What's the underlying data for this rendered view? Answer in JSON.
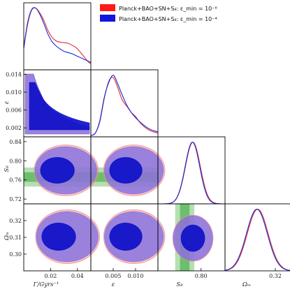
{
  "colors": {
    "red_line": "#e53030",
    "blue_line": "#1a2ad6",
    "red_fill_outer": "#f08a8a",
    "red_fill_inner": "#e03a3a",
    "blue_fill_outer": "#7b6ee6",
    "blue_fill_inner": "#0e10c8",
    "green_outer": "#b5dfb2",
    "green_inner": "#6cbf6c"
  },
  "legend": {
    "entries": [
      {
        "label": "Planck+BAO+SN+S₈: ε_min = 10⁻⁶",
        "color": "#ff1a1a"
      },
      {
        "label": "Planck+BAO+SN+S₈: ε_min = 10⁻⁴",
        "color": "#1414e0"
      }
    ]
  },
  "axis_labels": {
    "Gamma": "Γ/Gyrs⁻¹",
    "eps": "ε",
    "S8": "S₈",
    "Om": "Ωₘ"
  },
  "chart_data": {
    "type": "triangle-corner-plot",
    "parameters": [
      "Gamma",
      "eps",
      "S8",
      "Om"
    ],
    "ranges": {
      "Gamma": [
        0.0,
        0.05
      ],
      "eps": [
        0.0,
        0.015
      ],
      "S8": [
        0.71,
        0.85
      ],
      "Om": [
        0.29,
        0.33
      ]
    },
    "ticks": {
      "Gamma": [
        0.02,
        0.04
      ],
      "eps": [
        0.002,
        0.006,
        0.01,
        0.014
      ],
      "eps_x": [
        0.005,
        0.01
      ],
      "S8": [
        0.72,
        0.76,
        0.8,
        0.84
      ],
      "S8_x": [
        0.8
      ],
      "Om": [
        0.3,
        0.31,
        0.32
      ],
      "Om_x": [
        0.32
      ]
    },
    "tick_labels": {
      "Gamma_x": [
        "0.02",
        "0.04"
      ],
      "eps_y": [
        "0.002",
        "0.006",
        "0.010",
        "0.014"
      ],
      "eps_x": [
        "0.005",
        "0.010"
      ],
      "S8_y": [
        "0.72",
        "0.76",
        "0.80",
        "0.84"
      ],
      "S8_x": [
        "0.80"
      ],
      "Om_y": [
        "0.30",
        "0.31",
        "0.32"
      ],
      "Om_x": [
        "0.32"
      ]
    },
    "external_S8_prior": {
      "mean": 0.766,
      "sigma1": 0.01,
      "sigma2": 0.02
    },
    "series": [
      {
        "name": "Planck+BAO+SN+S₈: ε_min = 10⁻⁶",
        "marginals": {
          "Gamma": {
            "x": [
              0.0,
              0.003,
              0.006,
              0.009,
              0.012,
              0.015,
              0.018,
              0.021,
              0.024,
              0.027,
              0.03,
              0.033,
              0.036,
              0.039,
              0.042,
              0.045,
              0.048,
              0.05
            ],
            "p": [
              0.35,
              0.75,
              0.97,
              1.0,
              0.92,
              0.8,
              0.64,
              0.53,
              0.47,
              0.45,
              0.44,
              0.43,
              0.4,
              0.36,
              0.29,
              0.21,
              0.13,
              0.1
            ]
          },
          "eps": {
            "x": [
              0.0,
              0.001,
              0.002,
              0.003,
              0.004,
              0.005,
              0.006,
              0.007,
              0.008,
              0.009,
              0.01,
              0.011,
              0.012,
              0.013,
              0.014,
              0.015
            ],
            "p": [
              0.02,
              0.06,
              0.24,
              0.62,
              0.9,
              0.96,
              0.8,
              0.6,
              0.5,
              0.4,
              0.33,
              0.23,
              0.16,
              0.11,
              0.08,
              0.06
            ]
          },
          "S8": {
            "mean": 0.783,
            "sigma": 0.0155
          },
          "Om": {
            "mean": 0.3095,
            "sigma": 0.0062
          }
        }
      },
      {
        "name": "Planck+BAO+SN+S₈: ε_min = 10⁻⁴",
        "marginals": {
          "Gamma": {
            "x": [
              0.0,
              0.003,
              0.006,
              0.009,
              0.012,
              0.015,
              0.018,
              0.021,
              0.024,
              0.027,
              0.03,
              0.033,
              0.036,
              0.039,
              0.042,
              0.045,
              0.048,
              0.05
            ],
            "p": [
              0.36,
              0.78,
              0.98,
              1.0,
              0.9,
              0.75,
              0.58,
              0.46,
              0.39,
              0.34,
              0.3,
              0.28,
              0.26,
              0.23,
              0.2,
              0.17,
              0.14,
              0.12
            ]
          },
          "eps": {
            "x": [
              0.0,
              0.001,
              0.002,
              0.003,
              0.004,
              0.005,
              0.006,
              0.007,
              0.008,
              0.009,
              0.01,
              0.011,
              0.012,
              0.013,
              0.014,
              0.015
            ],
            "p": [
              0.02,
              0.06,
              0.26,
              0.64,
              0.88,
              1.0,
              0.86,
              0.68,
              0.52,
              0.4,
              0.31,
              0.24,
              0.18,
              0.13,
              0.1,
              0.08
            ]
          },
          "S8": {
            "mean": 0.782,
            "sigma": 0.0152
          },
          "Om": {
            "mean": 0.309,
            "sigma": 0.0062
          }
        }
      }
    ]
  }
}
